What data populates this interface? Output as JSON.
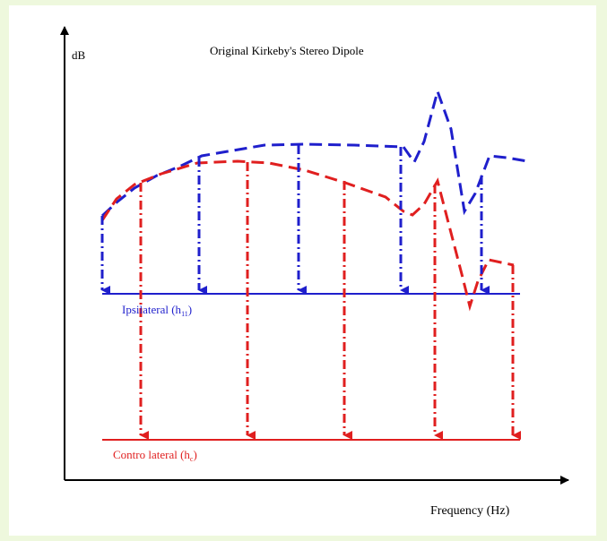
{
  "title": "Original Kirkeby's Stereo Dipole",
  "y_axis_label": "dB",
  "x_axis_label": "Frequency (Hz)",
  "ipsilateral": {
    "label_main": "Ipsilateral (h",
    "label_sub": "11",
    "label_close": ")",
    "color": "#1f1fcc"
  },
  "contralateral": {
    "label_main": "Contro lateral (h",
    "label_sub": "c",
    "label_close": ")",
    "color": "#e01f1f"
  },
  "colors": {
    "background": "#eef8dd",
    "axis": "#000000"
  }
}
